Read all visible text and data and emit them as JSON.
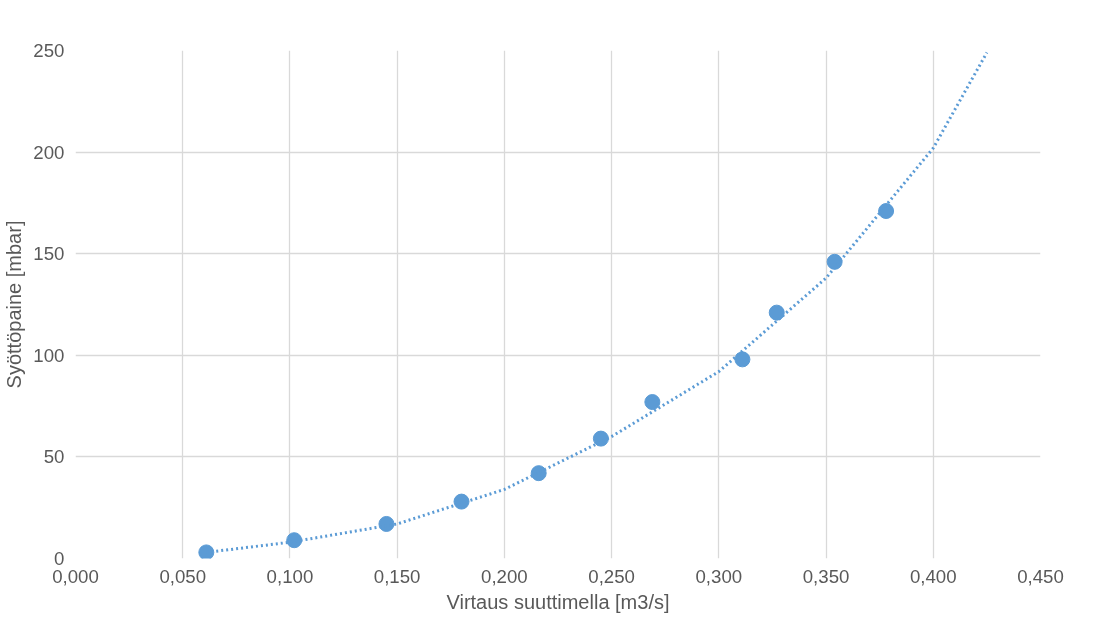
{
  "chart_data": {
    "type": "scatter",
    "xlabel": "Virtaus suuttimella [m3/s]",
    "ylabel": "Syöttöpaine [mbar]",
    "xlim": [
      0,
      0.45
    ],
    "ylim": [
      0,
      250
    ],
    "xticks": [
      {
        "value": 0,
        "label": "0,000"
      },
      {
        "value": 0.05,
        "label": "0,050"
      },
      {
        "value": 0.1,
        "label": "0,100"
      },
      {
        "value": 0.15,
        "label": "0,150"
      },
      {
        "value": 0.2,
        "label": "0,200"
      },
      {
        "value": 0.25,
        "label": "0,250"
      },
      {
        "value": 0.3,
        "label": "0,300"
      },
      {
        "value": 0.35,
        "label": "0,350"
      },
      {
        "value": 0.4,
        "label": "0,400"
      },
      {
        "value": 0.45,
        "label": "0,450"
      }
    ],
    "yticks": [
      0,
      50,
      100,
      150,
      200,
      250
    ],
    "grid": true,
    "series": [
      {
        "color": "#5b9bd5",
        "marker": "circle",
        "x": [
          0.061,
          0.102,
          0.145,
          0.18,
          0.216,
          0.245,
          0.269,
          0.311,
          0.327,
          0.354,
          0.378
        ],
        "values": [
          3,
          9,
          17,
          28,
          42,
          59,
          77,
          98,
          121,
          146,
          171
        ]
      },
      {
        "type": "line",
        "color": "#5b9bd5",
        "marker": "none",
        "line_style": "dotted",
        "x": [
          0.061,
          0.1,
          0.15,
          0.2,
          0.25,
          0.3,
          0.35,
          0.4,
          0.425
        ],
        "values": [
          3,
          8,
          17,
          34,
          60,
          92,
          138,
          202,
          249
        ]
      }
    ]
  }
}
